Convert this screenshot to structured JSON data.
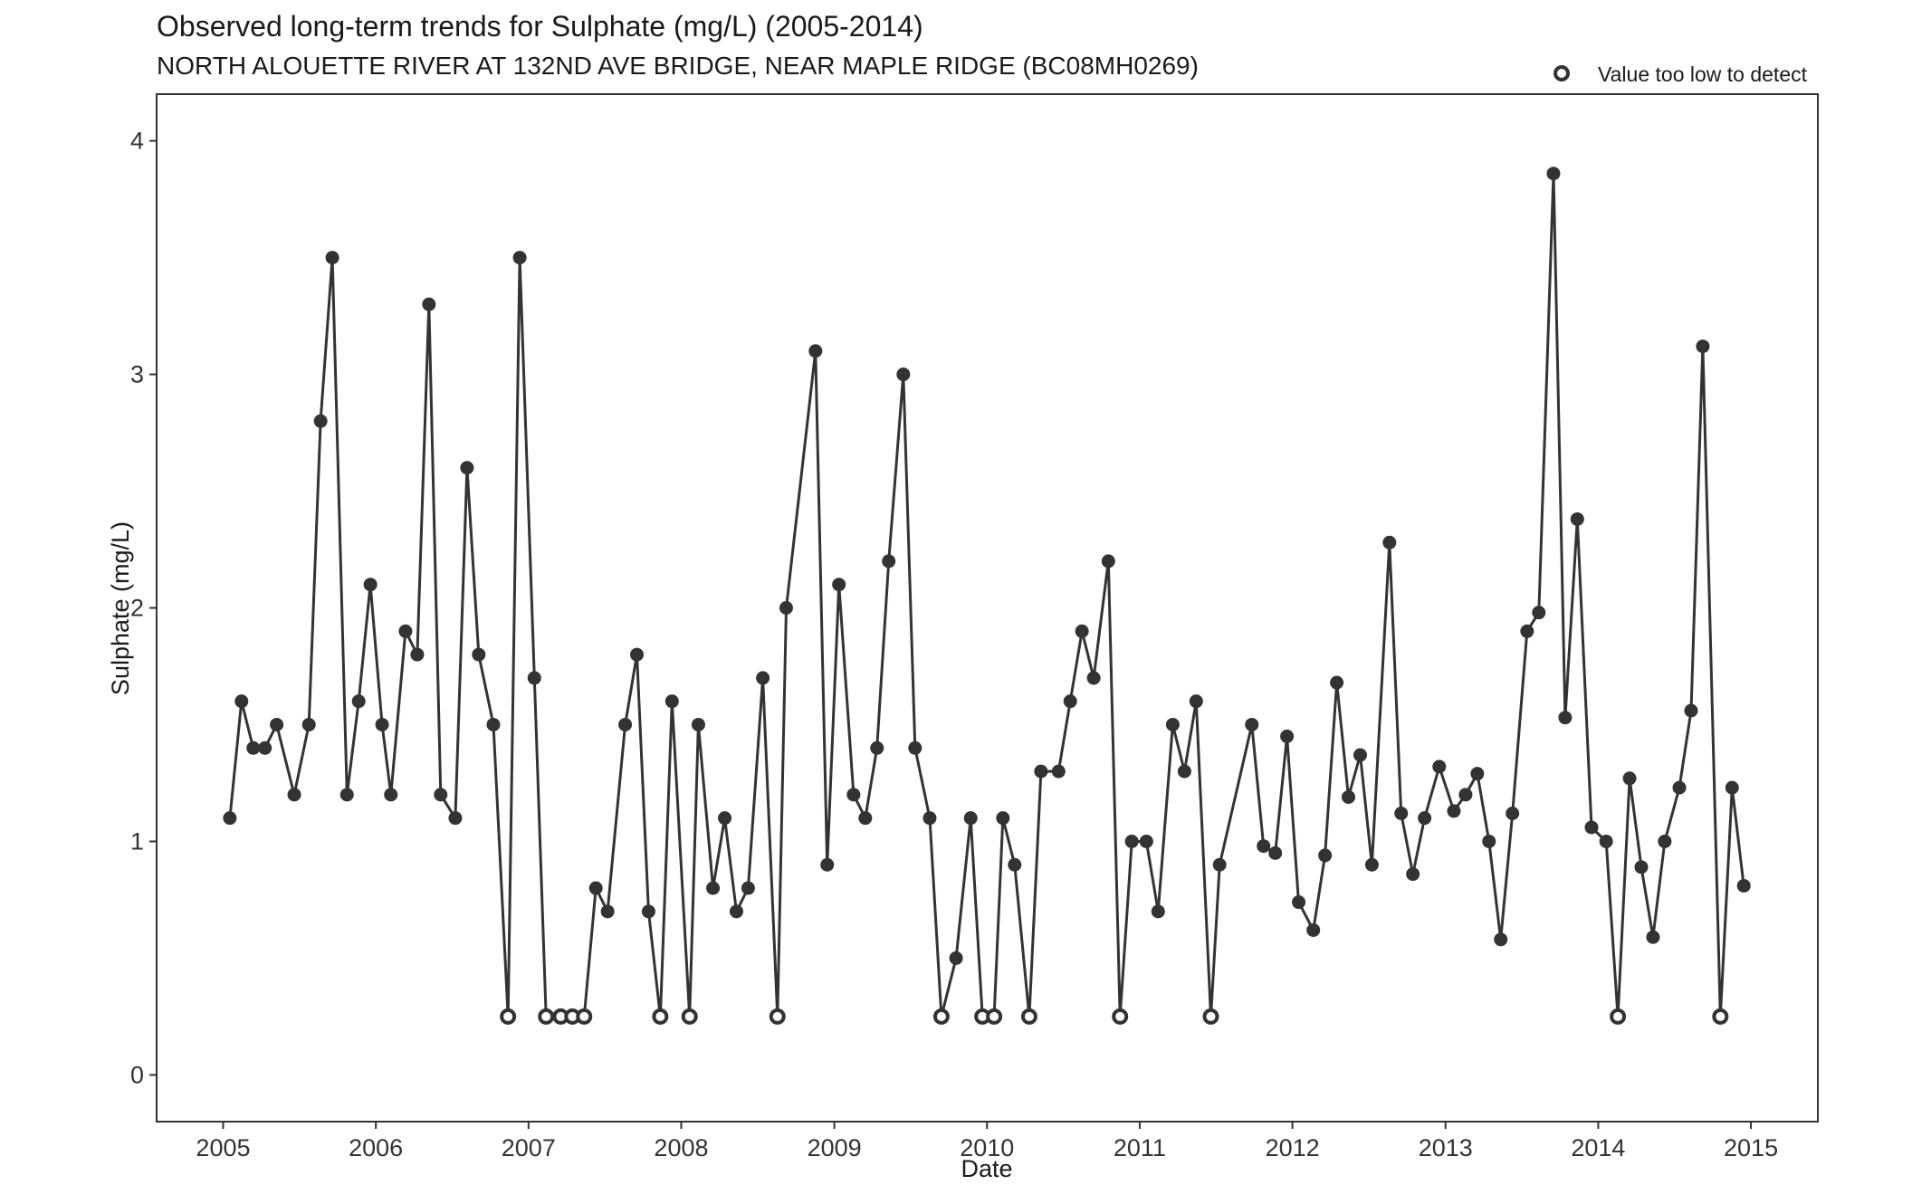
{
  "chart_data": {
    "type": "line",
    "title": "Observed long-term trends for Sulphate (mg/L) (2005-2014)",
    "subtitle": "NORTH ALOUETTE RIVER AT 132ND AVE BRIDGE, NEAR MAPLE RIDGE (BC08MH0269)",
    "xlabel": "Date",
    "ylabel": "Sulphate (mg/L)",
    "xlim": [
      "2004-07-26",
      "2015-06-10"
    ],
    "ylim": [
      -0.2,
      4.2
    ],
    "x_ticks": [
      "2005",
      "2006",
      "2007",
      "2008",
      "2009",
      "2010",
      "2011",
      "2012",
      "2013",
      "2014",
      "2015"
    ],
    "y_ticks": [
      "0",
      "1",
      "2",
      "3",
      "4"
    ],
    "grid": false,
    "legend": {
      "position": "top-right",
      "entries": [
        {
          "label": "Value too low to detect",
          "marker": "open-circle"
        }
      ]
    },
    "colors": {
      "line": "#333333",
      "point": "#333333"
    },
    "series": [
      {
        "points": [
          {
            "x": "2005-01-17",
            "y": 1.1
          },
          {
            "x": "2005-02-14",
            "y": 1.6
          },
          {
            "x": "2005-03-14",
            "y": 1.4
          },
          {
            "x": "2005-04-11",
            "y": 1.4
          },
          {
            "x": "2005-05-09",
            "y": 1.5
          },
          {
            "x": "2005-06-20",
            "y": 1.2
          },
          {
            "x": "2005-07-25",
            "y": 1.5
          },
          {
            "x": "2005-08-22",
            "y": 2.8
          },
          {
            "x": "2005-09-19",
            "y": 3.5
          },
          {
            "x": "2005-10-24",
            "y": 1.2
          },
          {
            "x": "2005-11-21",
            "y": 1.6
          },
          {
            "x": "2005-12-19",
            "y": 2.1
          },
          {
            "x": "2006-01-16",
            "y": 1.5
          },
          {
            "x": "2006-02-06",
            "y": 1.2
          },
          {
            "x": "2006-03-13",
            "y": 1.9
          },
          {
            "x": "2006-04-10",
            "y": 1.8
          },
          {
            "x": "2006-05-08",
            "y": 3.3
          },
          {
            "x": "2006-06-05",
            "y": 1.2
          },
          {
            "x": "2006-07-10",
            "y": 1.1
          },
          {
            "x": "2006-08-07",
            "y": 2.6
          },
          {
            "x": "2006-09-04",
            "y": 1.8
          },
          {
            "x": "2006-10-09",
            "y": 1.5
          },
          {
            "x": "2006-11-13",
            "y": 0.25,
            "censored": true
          },
          {
            "x": "2006-12-11",
            "y": 3.5
          },
          {
            "x": "2007-01-15",
            "y": 1.7
          },
          {
            "x": "2007-02-12",
            "y": 0.25,
            "censored": true
          },
          {
            "x": "2007-03-19",
            "y": 0.25,
            "censored": true
          },
          {
            "x": "2007-04-16",
            "y": 0.25,
            "censored": true
          },
          {
            "x": "2007-05-14",
            "y": 0.25,
            "censored": true
          },
          {
            "x": "2007-06-11",
            "y": 0.8
          },
          {
            "x": "2007-07-09",
            "y": 0.7
          },
          {
            "x": "2007-08-20",
            "y": 1.5
          },
          {
            "x": "2007-09-17",
            "y": 1.8
          },
          {
            "x": "2007-10-15",
            "y": 0.7
          },
          {
            "x": "2007-11-12",
            "y": 0.25,
            "censored": true
          },
          {
            "x": "2007-12-10",
            "y": 1.6
          },
          {
            "x": "2008-01-21",
            "y": 0.25,
            "censored": true
          },
          {
            "x": "2008-02-11",
            "y": 1.5
          },
          {
            "x": "2008-03-17",
            "y": 0.8
          },
          {
            "x": "2008-04-14",
            "y": 1.1
          },
          {
            "x": "2008-05-12",
            "y": 0.7
          },
          {
            "x": "2008-06-09",
            "y": 0.8
          },
          {
            "x": "2008-07-14",
            "y": 1.7
          },
          {
            "x": "2008-08-18",
            "y": 0.25,
            "censored": true
          },
          {
            "x": "2008-09-08",
            "y": 2.0
          },
          {
            "x": "2008-11-17",
            "y": 3.1
          },
          {
            "x": "2008-12-15",
            "y": 0.9
          },
          {
            "x": "2009-01-12",
            "y": 2.1
          },
          {
            "x": "2009-02-16",
            "y": 1.2
          },
          {
            "x": "2009-03-16",
            "y": 1.1
          },
          {
            "x": "2009-04-13",
            "y": 1.4
          },
          {
            "x": "2009-05-11",
            "y": 2.2
          },
          {
            "x": "2009-06-15",
            "y": 3.0
          },
          {
            "x": "2009-07-13",
            "y": 1.4
          },
          {
            "x": "2009-08-17",
            "y": 1.1
          },
          {
            "x": "2009-09-14",
            "y": 0.25,
            "censored": true
          },
          {
            "x": "2009-10-19",
            "y": 0.5
          },
          {
            "x": "2009-11-23",
            "y": 1.1
          },
          {
            "x": "2009-12-21",
            "y": 0.25,
            "censored": true
          },
          {
            "x": "2010-01-18",
            "y": 0.25,
            "censored": true
          },
          {
            "x": "2010-02-08",
            "y": 1.1
          },
          {
            "x": "2010-03-08",
            "y": 0.9
          },
          {
            "x": "2010-04-12",
            "y": 0.25,
            "censored": true
          },
          {
            "x": "2010-05-10",
            "y": 1.3
          },
          {
            "x": "2010-06-21",
            "y": 1.3
          },
          {
            "x": "2010-07-19",
            "y": 1.6
          },
          {
            "x": "2010-08-16",
            "y": 1.9
          },
          {
            "x": "2010-09-13",
            "y": 1.7
          },
          {
            "x": "2010-10-18",
            "y": 2.2
          },
          {
            "x": "2010-11-15",
            "y": 0.25,
            "censored": true
          },
          {
            "x": "2010-12-13",
            "y": 1.0
          },
          {
            "x": "2011-01-17",
            "y": 1.0
          },
          {
            "x": "2011-02-14",
            "y": 0.7
          },
          {
            "x": "2011-03-21",
            "y": 1.5
          },
          {
            "x": "2011-04-18",
            "y": 1.3
          },
          {
            "x": "2011-05-16",
            "y": 1.6
          },
          {
            "x": "2011-06-20",
            "y": 0.25,
            "censored": true
          },
          {
            "x": "2011-07-11",
            "y": 0.9
          },
          {
            "x": "2011-09-26",
            "y": 1.5
          },
          {
            "x": "2011-10-24",
            "y": 0.98
          },
          {
            "x": "2011-11-21",
            "y": 0.95
          },
          {
            "x": "2011-12-19",
            "y": 1.45
          },
          {
            "x": "2012-01-16",
            "y": 0.74
          },
          {
            "x": "2012-02-20",
            "y": 0.62
          },
          {
            "x": "2012-03-19",
            "y": 0.94
          },
          {
            "x": "2012-04-16",
            "y": 1.68
          },
          {
            "x": "2012-05-14",
            "y": 1.19
          },
          {
            "x": "2012-06-11",
            "y": 1.37
          },
          {
            "x": "2012-07-09",
            "y": 0.9
          },
          {
            "x": "2012-08-20",
            "y": 2.28
          },
          {
            "x": "2012-09-17",
            "y": 1.12
          },
          {
            "x": "2012-10-15",
            "y": 0.86
          },
          {
            "x": "2012-11-12",
            "y": 1.1
          },
          {
            "x": "2012-12-17",
            "y": 1.32
          },
          {
            "x": "2013-01-21",
            "y": 1.13
          },
          {
            "x": "2013-02-18",
            "y": 1.2
          },
          {
            "x": "2013-03-18",
            "y": 1.29
          },
          {
            "x": "2013-04-15",
            "y": 1.0
          },
          {
            "x": "2013-05-13",
            "y": 0.58
          },
          {
            "x": "2013-06-10",
            "y": 1.12
          },
          {
            "x": "2013-07-15",
            "y": 1.9
          },
          {
            "x": "2013-08-12",
            "y": 1.98
          },
          {
            "x": "2013-09-16",
            "y": 3.86
          },
          {
            "x": "2013-10-14",
            "y": 1.53
          },
          {
            "x": "2013-11-12",
            "y": 2.38
          },
          {
            "x": "2013-12-16",
            "y": 1.06
          },
          {
            "x": "2014-01-20",
            "y": 1.0
          },
          {
            "x": "2014-02-17",
            "y": 0.25,
            "censored": true
          },
          {
            "x": "2014-03-17",
            "y": 1.27
          },
          {
            "x": "2014-04-14",
            "y": 0.89
          },
          {
            "x": "2014-05-12",
            "y": 0.59
          },
          {
            "x": "2014-06-09",
            "y": 1.0
          },
          {
            "x": "2014-07-14",
            "y": 1.23
          },
          {
            "x": "2014-08-11",
            "y": 1.56
          },
          {
            "x": "2014-09-08",
            "y": 3.12
          },
          {
            "x": "2014-10-20",
            "y": 0.25,
            "censored": true
          },
          {
            "x": "2014-11-17",
            "y": 1.23
          },
          {
            "x": "2014-12-15",
            "y": 0.81
          }
        ]
      }
    ]
  }
}
